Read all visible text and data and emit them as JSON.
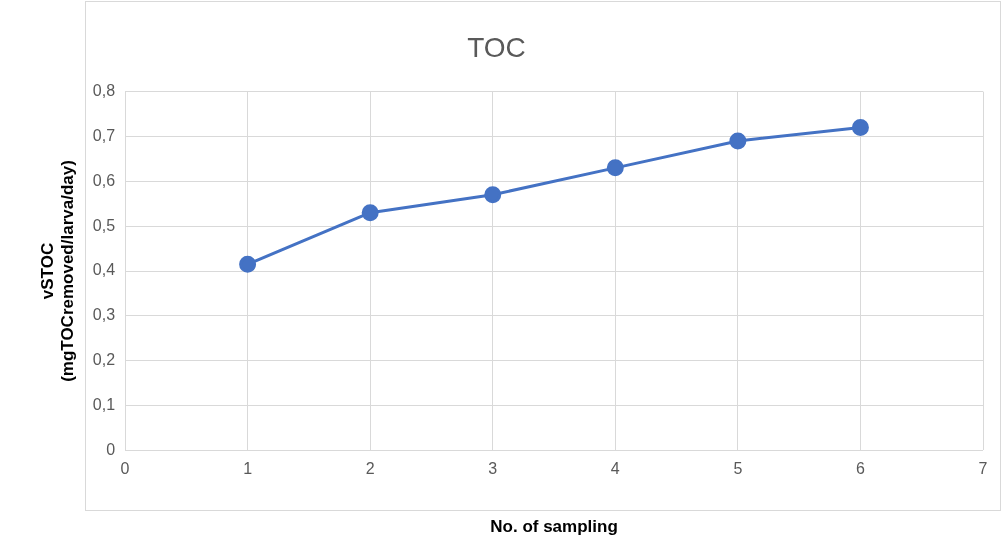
{
  "chart_data": {
    "type": "line",
    "title": "TOC",
    "xlabel": "No. of sampling",
    "ylabel": "vSTOC\n(mgTOCremoved/larva/day)",
    "x": [
      1,
      2,
      3,
      4,
      5,
      6
    ],
    "series": [
      {
        "color": "#4472c4",
        "values": [
          0.415,
          0.53,
          0.57,
          0.63,
          0.69,
          0.72
        ]
      }
    ],
    "xlim": [
      0,
      7
    ],
    "xticks": [
      0,
      1,
      2,
      3,
      4,
      5,
      6,
      7
    ],
    "ylim": [
      0,
      0.8
    ],
    "yticks": [
      0,
      {
        "value": 0.1,
        "label": "0,1"
      },
      {
        "value": 0.2,
        "label": "0,2"
      },
      {
        "value": 0.3,
        "label": "0,3"
      },
      {
        "value": 0.4,
        "label": "0,4"
      },
      {
        "value": 0.5,
        "label": "0,5"
      },
      {
        "value": 0.6,
        "label": "0,6"
      },
      {
        "value": 0.7,
        "label": "0,7"
      },
      {
        "value": 0.8,
        "label": "0,8"
      }
    ],
    "grid": true,
    "marker": "circle",
    "line_style": "solid",
    "legend": false
  }
}
